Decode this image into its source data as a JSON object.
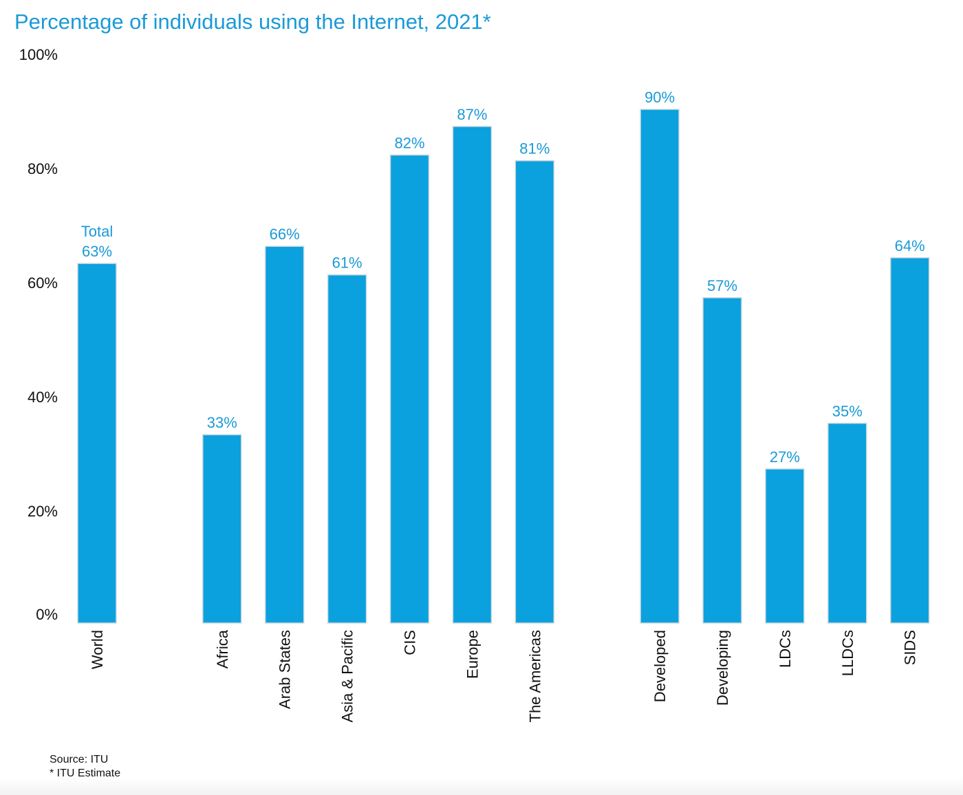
{
  "chart_data": {
    "type": "bar",
    "title": "Percentage of individuals using the Internet, 2021*",
    "xlabel": "",
    "ylabel": "",
    "ylim": [
      0,
      100
    ],
    "yticks": [
      "0%",
      "20%",
      "40%",
      "60%",
      "80%",
      "100%"
    ],
    "grid": false,
    "categories": [
      "World",
      "Africa",
      "Arab States",
      "Asia & Pacific",
      "CIS",
      "Europe",
      "The Americas",
      "Developed",
      "Developing",
      "LDCs",
      "LLDCs",
      "SIDS"
    ],
    "groups": [
      [
        "World"
      ],
      [
        "Africa",
        "Arab States",
        "Asia & Pacific",
        "CIS",
        "Europe",
        "The Americas"
      ],
      [
        "Developed",
        "Developing",
        "LDCs",
        "LLDCs",
        "SIDS"
      ]
    ],
    "values": [
      63,
      33,
      66,
      61,
      82,
      87,
      81,
      90,
      57,
      27,
      35,
      64
    ],
    "data_labels": [
      "63%",
      "33%",
      "66%",
      "61%",
      "82%",
      "87%",
      "81%",
      "90%",
      "57%",
      "27%",
      "35%",
      "64%"
    ],
    "annotations": [
      {
        "category": "World",
        "text": "Total"
      }
    ],
    "bar_color": "#0aa1de",
    "label_color": "#1a9ad6"
  },
  "footnotes": {
    "source": "Source: ITU",
    "note": "* ITU Estimate"
  }
}
